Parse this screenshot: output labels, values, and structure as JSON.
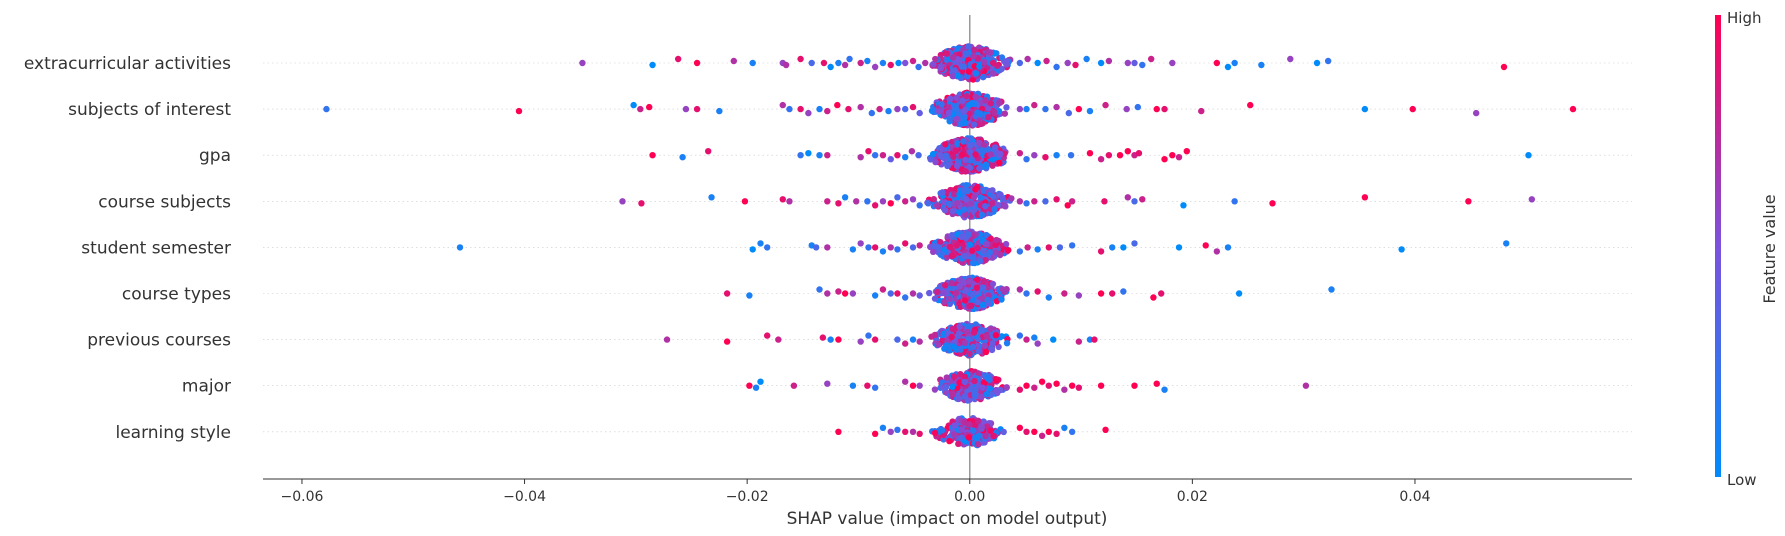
{
  "chart_data": {
    "type": "scatter",
    "subtype": "shap-beeswarm",
    "xlabel": "SHAP value (impact on model output)",
    "xlim": [
      -0.0635,
      0.0595
    ],
    "xticks": [
      -0.06,
      -0.04,
      -0.02,
      0.0,
      0.02,
      0.04
    ],
    "xtick_labels": [
      "−0.06",
      "−0.04",
      "−0.02",
      "0.00",
      "0.02",
      "0.04"
    ],
    "grid": false,
    "features": [
      "extracurricular activities",
      "subjects of interest",
      "gpa",
      "course subjects",
      "student semester",
      "course types",
      "previous courses",
      "major",
      "learning style"
    ],
    "colorbar": {
      "label": "Feature value",
      "high_label": "High",
      "low_label": "Low",
      "high_color": "#ff0052",
      "low_color": "#008bfb"
    },
    "series": [
      {
        "feature": "extracurricular activities",
        "points": [
          [
            -0.0348,
            0.6
          ],
          [
            -0.0285,
            0.0
          ],
          [
            -0.0262,
            0.9
          ],
          [
            -0.0245,
            1.0
          ],
          [
            -0.0212,
            0.7
          ],
          [
            -0.0195,
            0.1
          ],
          [
            -0.0168,
            0.6
          ],
          [
            -0.0165,
            0.7
          ],
          [
            -0.0152,
            0.9
          ],
          [
            -0.0142,
            0.3
          ],
          [
            -0.0131,
            0.9
          ],
          [
            -0.0125,
            0.0
          ],
          [
            -0.0118,
            0.1
          ],
          [
            -0.0112,
            0.7
          ],
          [
            -0.0108,
            0.2
          ],
          [
            -0.0098,
            0.8
          ],
          [
            -0.0092,
            0.1
          ],
          [
            -0.0085,
            0.6
          ],
          [
            -0.0078,
            0.1
          ],
          [
            -0.0071,
            0.9
          ],
          [
            -0.0064,
            0.0
          ],
          [
            -0.0058,
            0.5
          ],
          [
            -0.0051,
            0.8
          ],
          [
            -0.0046,
            0.2
          ],
          [
            -0.004,
            0.7
          ],
          [
            0.0045,
            0.3
          ],
          [
            0.0052,
            0.7
          ],
          [
            0.0061,
            0.0
          ],
          [
            0.0069,
            0.8
          ],
          [
            0.0078,
            0.2
          ],
          [
            0.0088,
            0.6
          ],
          [
            0.0095,
            0.9
          ],
          [
            0.0105,
            0.1
          ],
          [
            0.0118,
            0.0
          ],
          [
            0.0125,
            0.7
          ],
          [
            0.0142,
            0.6
          ],
          [
            0.0148,
            0.4
          ],
          [
            0.0155,
            0.2
          ],
          [
            0.0163,
            0.8
          ],
          [
            0.0182,
            0.6
          ],
          [
            0.0222,
            1.0
          ],
          [
            0.0232,
            0.0
          ],
          [
            0.0238,
            0.1
          ],
          [
            0.0262,
            0.1
          ],
          [
            0.0288,
            0.6
          ],
          [
            0.0312,
            0.0
          ],
          [
            0.0322,
            0.2
          ],
          [
            0.048,
            1.0
          ]
        ]
      },
      {
        "feature": "subjects of interest",
        "points": [
          [
            -0.0578,
            0.2
          ],
          [
            -0.0405,
            1.0
          ],
          [
            -0.0302,
            0.0
          ],
          [
            -0.0296,
            0.8
          ],
          [
            -0.0288,
            1.0
          ],
          [
            -0.0255,
            0.6
          ],
          [
            -0.0245,
            0.9
          ],
          [
            -0.0225,
            0.1
          ],
          [
            -0.0168,
            0.7
          ],
          [
            -0.0162,
            0.2
          ],
          [
            -0.0152,
            0.9
          ],
          [
            -0.0145,
            0.6
          ],
          [
            -0.0135,
            0.1
          ],
          [
            -0.0128,
            0.8
          ],
          [
            -0.0119,
            1.0
          ],
          [
            -0.0109,
            0.9
          ],
          [
            -0.0098,
            0.7
          ],
          [
            -0.0088,
            0.2
          ],
          [
            -0.0081,
            0.8
          ],
          [
            -0.0073,
            0.1
          ],
          [
            -0.0065,
            0.6
          ],
          [
            -0.0058,
            0.3
          ],
          [
            -0.0051,
            0.9
          ],
          [
            -0.0045,
            0.4
          ],
          [
            0.0045,
            0.6
          ],
          [
            0.0051,
            0.1
          ],
          [
            0.0058,
            0.8
          ],
          [
            0.0068,
            0.2
          ],
          [
            0.0078,
            0.7
          ],
          [
            0.0089,
            0.3
          ],
          [
            0.0098,
            1.0
          ],
          [
            0.0108,
            0.1
          ],
          [
            0.0122,
            0.8
          ],
          [
            0.0141,
            0.6
          ],
          [
            0.0151,
            0.2
          ],
          [
            0.0168,
            1.0
          ],
          [
            0.0175,
            0.9
          ],
          [
            0.0208,
            0.8
          ],
          [
            0.0252,
            1.0
          ],
          [
            0.0355,
            0.0
          ],
          [
            0.0398,
            1.0
          ],
          [
            0.0455,
            0.6
          ],
          [
            0.0542,
            1.0
          ]
        ]
      },
      {
        "feature": "gpa",
        "points": [
          [
            -0.0285,
            1.0
          ],
          [
            -0.0258,
            0.1
          ],
          [
            -0.0235,
            0.9
          ],
          [
            -0.0152,
            0.2
          ],
          [
            -0.0145,
            0.0
          ],
          [
            -0.0135,
            0.1
          ],
          [
            -0.0128,
            0.8
          ],
          [
            -0.0098,
            0.7
          ],
          [
            -0.0091,
            0.9
          ],
          [
            -0.0085,
            0.2
          ],
          [
            -0.0078,
            0.8
          ],
          [
            -0.0071,
            0.4
          ],
          [
            -0.0065,
            0.9
          ],
          [
            -0.0058,
            0.1
          ],
          [
            -0.0052,
            0.7
          ],
          [
            -0.0046,
            0.3
          ],
          [
            0.0045,
            0.8
          ],
          [
            0.0051,
            0.2
          ],
          [
            0.0058,
            0.6
          ],
          [
            0.0068,
            0.9
          ],
          [
            0.0078,
            0.1
          ],
          [
            0.0091,
            0.2
          ],
          [
            0.0108,
            1.0
          ],
          [
            0.0118,
            0.8
          ],
          [
            0.0125,
            0.9
          ],
          [
            0.0135,
            1.0
          ],
          [
            0.0142,
            1.0
          ],
          [
            0.0148,
            0.8
          ],
          [
            0.0152,
            0.9
          ],
          [
            0.0175,
            1.0
          ],
          [
            0.0182,
            1.0
          ],
          [
            0.0188,
            0.8
          ],
          [
            0.0195,
            1.0
          ],
          [
            0.0502,
            0.0
          ]
        ]
      },
      {
        "feature": "course subjects",
        "points": [
          [
            -0.0312,
            0.6
          ],
          [
            -0.0295,
            0.9
          ],
          [
            -0.0232,
            0.1
          ],
          [
            -0.0202,
            1.0
          ],
          [
            -0.0168,
            0.9
          ],
          [
            -0.0162,
            0.7
          ],
          [
            -0.0128,
            0.8
          ],
          [
            -0.0118,
            0.9
          ],
          [
            -0.0112,
            0.1
          ],
          [
            -0.0102,
            0.7
          ],
          [
            -0.0092,
            0.2
          ],
          [
            -0.0085,
            0.9
          ],
          [
            -0.0078,
            0.6
          ],
          [
            -0.0071,
            1.0
          ],
          [
            -0.0065,
            0.3
          ],
          [
            -0.0058,
            0.8
          ],
          [
            -0.0051,
            0.6
          ],
          [
            -0.0045,
            0.2
          ],
          [
            0.0045,
            0.7
          ],
          [
            0.0051,
            0.2
          ],
          [
            0.0058,
            0.8
          ],
          [
            0.0068,
            0.3
          ],
          [
            0.0078,
            0.9
          ],
          [
            0.0088,
            1.0
          ],
          [
            0.0092,
            0.8
          ],
          [
            0.0121,
            0.9
          ],
          [
            0.0142,
            0.7
          ],
          [
            0.0148,
            0.3
          ],
          [
            0.0155,
            0.8
          ],
          [
            0.0192,
            0.0
          ],
          [
            0.0238,
            0.2
          ],
          [
            0.0272,
            1.0
          ],
          [
            0.0355,
            1.0
          ],
          [
            0.0448,
            1.0
          ],
          [
            0.0505,
            0.6
          ]
        ]
      },
      {
        "feature": "student semester",
        "points": [
          [
            -0.0458,
            0.1
          ],
          [
            -0.0195,
            0.0
          ],
          [
            -0.0188,
            0.1
          ],
          [
            -0.0182,
            0.2
          ],
          [
            -0.0142,
            0.1
          ],
          [
            -0.0138,
            0.3
          ],
          [
            -0.0128,
            0.7
          ],
          [
            -0.0105,
            0.1
          ],
          [
            -0.0098,
            0.6
          ],
          [
            -0.0091,
            0.2
          ],
          [
            -0.0085,
            0.9
          ],
          [
            -0.0078,
            0.1
          ],
          [
            -0.0071,
            0.7
          ],
          [
            -0.0065,
            0.2
          ],
          [
            -0.0058,
            0.9
          ],
          [
            -0.0051,
            0.3
          ],
          [
            -0.0045,
            0.8
          ],
          [
            0.0045,
            0.2
          ],
          [
            0.0052,
            0.8
          ],
          [
            0.0061,
            0.1
          ],
          [
            0.0071,
            0.9
          ],
          [
            0.0081,
            0.3
          ],
          [
            0.0092,
            0.2
          ],
          [
            0.0118,
            0.9
          ],
          [
            0.0128,
            0.1
          ],
          [
            0.0138,
            0.0
          ],
          [
            0.0148,
            0.3
          ],
          [
            0.0188,
            0.0
          ],
          [
            0.0212,
            1.0
          ],
          [
            0.0222,
            0.7
          ],
          [
            0.0232,
            0.1
          ],
          [
            0.0388,
            0.0
          ],
          [
            0.0482,
            0.1
          ]
        ]
      },
      {
        "feature": "course types",
        "points": [
          [
            -0.0218,
            0.9
          ],
          [
            -0.0198,
            0.1
          ],
          [
            -0.0135,
            0.2
          ],
          [
            -0.0128,
            0.7
          ],
          [
            -0.0118,
            0.8
          ],
          [
            -0.0112,
            1.0
          ],
          [
            -0.0105,
            0.6
          ],
          [
            -0.0085,
            0.1
          ],
          [
            -0.0078,
            0.8
          ],
          [
            -0.0071,
            0.3
          ],
          [
            -0.0065,
            0.9
          ],
          [
            -0.0058,
            0.2
          ],
          [
            -0.0051,
            0.7
          ],
          [
            -0.0045,
            0.4
          ],
          [
            0.0045,
            0.7
          ],
          [
            0.0051,
            0.2
          ],
          [
            0.0061,
            0.9
          ],
          [
            0.0071,
            0.1
          ],
          [
            0.0085,
            0.8
          ],
          [
            0.0098,
            0.6
          ],
          [
            0.0118,
            1.0
          ],
          [
            0.0128,
            0.9
          ],
          [
            0.0138,
            0.2
          ],
          [
            0.0165,
            1.0
          ],
          [
            0.0172,
            0.9
          ],
          [
            0.0242,
            0.0
          ],
          [
            0.0325,
            0.1
          ]
        ]
      },
      {
        "feature": "previous courses",
        "points": [
          [
            -0.0272,
            0.7
          ],
          [
            -0.0218,
            1.0
          ],
          [
            -0.0182,
            0.9
          ],
          [
            -0.0172,
            0.8
          ],
          [
            -0.0132,
            0.9
          ],
          [
            -0.0125,
            0.1
          ],
          [
            -0.0118,
            1.0
          ],
          [
            -0.0098,
            0.6
          ],
          [
            -0.0091,
            0.2
          ],
          [
            -0.0085,
            0.9
          ],
          [
            -0.0065,
            0.3
          ],
          [
            -0.0058,
            0.8
          ],
          [
            -0.0051,
            0.1
          ],
          [
            -0.0045,
            0.7
          ],
          [
            0.0045,
            0.2
          ],
          [
            0.0051,
            0.8
          ],
          [
            0.0058,
            0.1
          ],
          [
            0.0061,
            0.6
          ],
          [
            0.0075,
            0.0
          ],
          [
            0.0098,
            0.8
          ],
          [
            0.0108,
            0.1
          ],
          [
            0.0112,
            0.9
          ]
        ]
      },
      {
        "feature": "major",
        "points": [
          [
            -0.0198,
            1.0
          ],
          [
            -0.0192,
            0.1
          ],
          [
            -0.0188,
            0.0
          ],
          [
            -0.0158,
            0.8
          ],
          [
            -0.0128,
            0.6
          ],
          [
            -0.0105,
            0.1
          ],
          [
            -0.0092,
            0.9
          ],
          [
            -0.0085,
            0.2
          ],
          [
            -0.0058,
            0.7
          ],
          [
            -0.0051,
            1.0
          ],
          [
            -0.0045,
            0.6
          ],
          [
            0.0045,
            0.9
          ],
          [
            0.0051,
            1.0
          ],
          [
            0.0058,
            0.8
          ],
          [
            0.0065,
            1.0
          ],
          [
            0.0071,
            0.9
          ],
          [
            0.0078,
            1.0
          ],
          [
            0.0085,
            0.7
          ],
          [
            0.0092,
            1.0
          ],
          [
            0.0098,
            0.9
          ],
          [
            0.0118,
            1.0
          ],
          [
            0.0148,
            1.0
          ],
          [
            0.0168,
            1.0
          ],
          [
            0.0175,
            0.1
          ],
          [
            0.0302,
            0.7
          ]
        ]
      },
      {
        "feature": "learning style",
        "points": [
          [
            -0.0118,
            1.0
          ],
          [
            -0.0085,
            1.0
          ],
          [
            -0.0078,
            0.1
          ],
          [
            -0.0071,
            0.6
          ],
          [
            -0.0065,
            0.2
          ],
          [
            -0.0058,
            0.9
          ],
          [
            -0.0051,
            0.7
          ],
          [
            -0.0045,
            0.9
          ],
          [
            0.0045,
            1.0
          ],
          [
            0.0051,
            0.9
          ],
          [
            0.0058,
            1.0
          ],
          [
            0.0065,
            0.8
          ],
          [
            0.0071,
            1.0
          ],
          [
            0.0078,
            0.9
          ],
          [
            0.0085,
            0.1
          ],
          [
            0.0092,
            0.2
          ],
          [
            0.0122,
            1.0
          ]
        ]
      }
    ]
  }
}
